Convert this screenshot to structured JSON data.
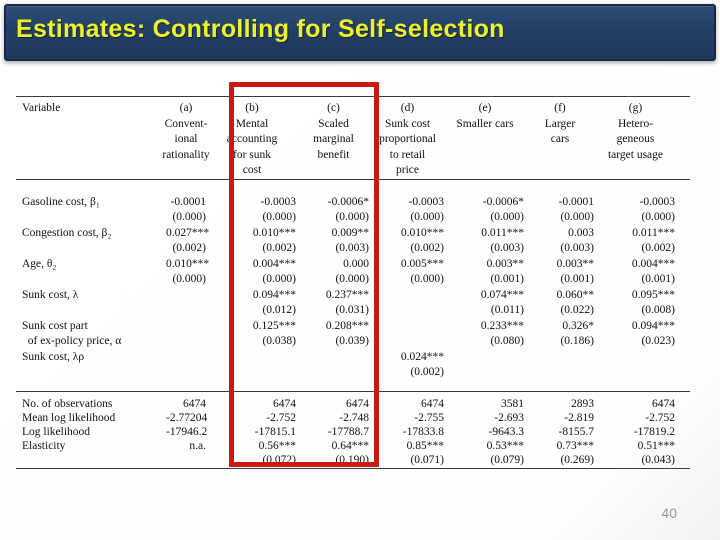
{
  "slide": {
    "title": "Estimates: Controlling for Self-selection",
    "page_number": "40"
  },
  "colors": {
    "title_bar_navy": "#234066",
    "title_text_yellow": "#eef229",
    "highlight_red": "#cd1712",
    "page_number_gray": "#949494",
    "table_rule": "#3c3c3c"
  },
  "table": {
    "header": [
      {
        "lines": [
          "Variable"
        ]
      },
      {
        "lines": [
          "(a)",
          "Convent-",
          "ional",
          "rationality"
        ]
      },
      {
        "lines": [
          "(b)",
          "Mental",
          "accounting",
          "for sunk",
          "cost"
        ]
      },
      {
        "lines": [
          "(c)",
          "Scaled",
          "marginal",
          "benefit"
        ]
      },
      {
        "lines": [
          "(d)",
          "Sunk cost",
          "proportional",
          "to retail",
          "price"
        ]
      },
      {
        "lines": [
          "(e)",
          "Smaller cars"
        ]
      },
      {
        "lines": [
          "(f)",
          "Larger",
          "cars"
        ]
      },
      {
        "lines": [
          "(g)",
          "Hetero-",
          "geneous",
          "target usage"
        ]
      }
    ],
    "body_lines": [
      [
        "Gasoline cost, β₁",
        "-0.0001",
        "-0.0003",
        "-0.0006*",
        "-0.0003",
        "-0.0006*",
        "-0.0001",
        "-0.0003"
      ],
      [
        "",
        "(0.000)",
        "(0.000)",
        "(0.000)",
        "(0.000)",
        "(0.000)",
        "(0.000)",
        "(0.000)"
      ],
      [
        "Congestion cost, β₂",
        "0.027***",
        "0.010***",
        "0.009**",
        "0.010***",
        "0.011***",
        "0.003",
        "0.011***"
      ],
      [
        "",
        "(0.002)",
        "(0.002)",
        "(0.003)",
        "(0.002)",
        "(0.003)",
        "(0.003)",
        "(0.002)"
      ],
      [
        "Age, θ₂",
        "0.010***",
        "0.004***",
        "0.000",
        "0.005***",
        "0.003**",
        "0.003**",
        "0.004***"
      ],
      [
        "",
        "(0.000)",
        "(0.000)",
        "(0.000)",
        "(0.000)",
        "(0.001)",
        "(0.001)",
        "(0.001)"
      ],
      [
        "Sunk cost, λ",
        "",
        "0.094***",
        "0.237***",
        "",
        "0.074***",
        "0.060**",
        "0.095***"
      ],
      [
        "",
        "",
        "(0.012)",
        "(0.031)",
        "",
        "(0.011)",
        "(0.022)",
        "(0.008)"
      ],
      [
        "Sunk cost part",
        "",
        "0.125***",
        "0.208***",
        "",
        "0.233***",
        "0.326*",
        "0.094***"
      ],
      [
        "  of ex-policy price, α",
        "",
        "(0.038)",
        "(0.039)",
        "",
        "(0.080)",
        "(0.186)",
        "(0.023)"
      ],
      [
        "Sunk cost, λρ",
        "",
        "",
        "",
        "0.024***",
        "",
        "",
        ""
      ],
      [
        "",
        "",
        "",
        "",
        "(0.002)",
        "",
        "",
        ""
      ]
    ],
    "bottom_lines": [
      [
        "No. of observations",
        "6474",
        "6474",
        "6474",
        "6474",
        "3581",
        "2893",
        "6474"
      ],
      [
        "Mean log likelihood",
        "-2.77204",
        "-2.752",
        "-2.748",
        "-2.755",
        "-2.693",
        "-2.819",
        "-2.752"
      ],
      [
        "Log likelihood",
        "-17946.2",
        "-17815.1",
        "-17788.7",
        "-17833.8",
        "-9643.3",
        "-8155.7",
        "-17819.2"
      ],
      [
        "Elasticity",
        "n.a.",
        "0.56***",
        "0.64***",
        "0.85***",
        "0.53***",
        "0.73***",
        "0.51***"
      ],
      [
        "",
        "",
        "(0.072)",
        "(0.190)",
        "(0.071)",
        "(0.079)",
        "(0.269)",
        "(0.043)"
      ]
    ]
  }
}
